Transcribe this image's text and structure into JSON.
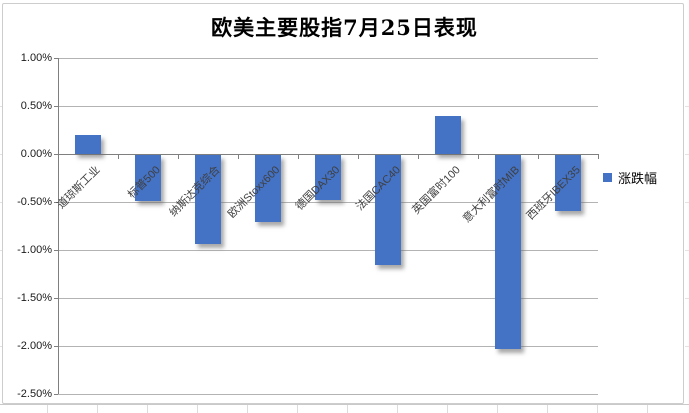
{
  "header": {
    "title": "欧美主要股指7月25日表现"
  },
  "legend": {
    "label": "涨跌幅",
    "swatch_color": "#4472C4"
  },
  "y_axis_labels": [
    "1.00%",
    "0.50%",
    "0.00%",
    "-0.50%",
    "-1.00%",
    "-1.50%",
    "-2.00%",
    "-2.50%"
  ],
  "colors": {
    "bar": "#4472C4",
    "gridline": "#b3b3b3",
    "axis_line": "#7f7f7f",
    "background": "#ffffff"
  },
  "chart_data": {
    "type": "bar",
    "title": "欧美主要股指7月25日表现",
    "categories": [
      "道琼斯工业",
      "标普500",
      "纳斯达克综合",
      "欧洲Stoxx600",
      "德国DAX30",
      "法国CAC40",
      "英国富时100",
      "意大利富时MIB",
      "西班牙IBEX35"
    ],
    "series": [
      {
        "name": "涨跌幅",
        "values": [
          0.2,
          -0.48,
          -0.93,
          -0.7,
          -0.47,
          -1.15,
          0.4,
          -2.02,
          -0.58
        ]
      }
    ],
    "unit": "%",
    "xlabel": "",
    "ylabel": "",
    "ylim": [
      -2.5,
      1.0
    ],
    "y_step": 0.5,
    "grid": true,
    "legend_position": "right",
    "bar_color": "#4472C4",
    "category_label_rotation_deg": 45
  }
}
